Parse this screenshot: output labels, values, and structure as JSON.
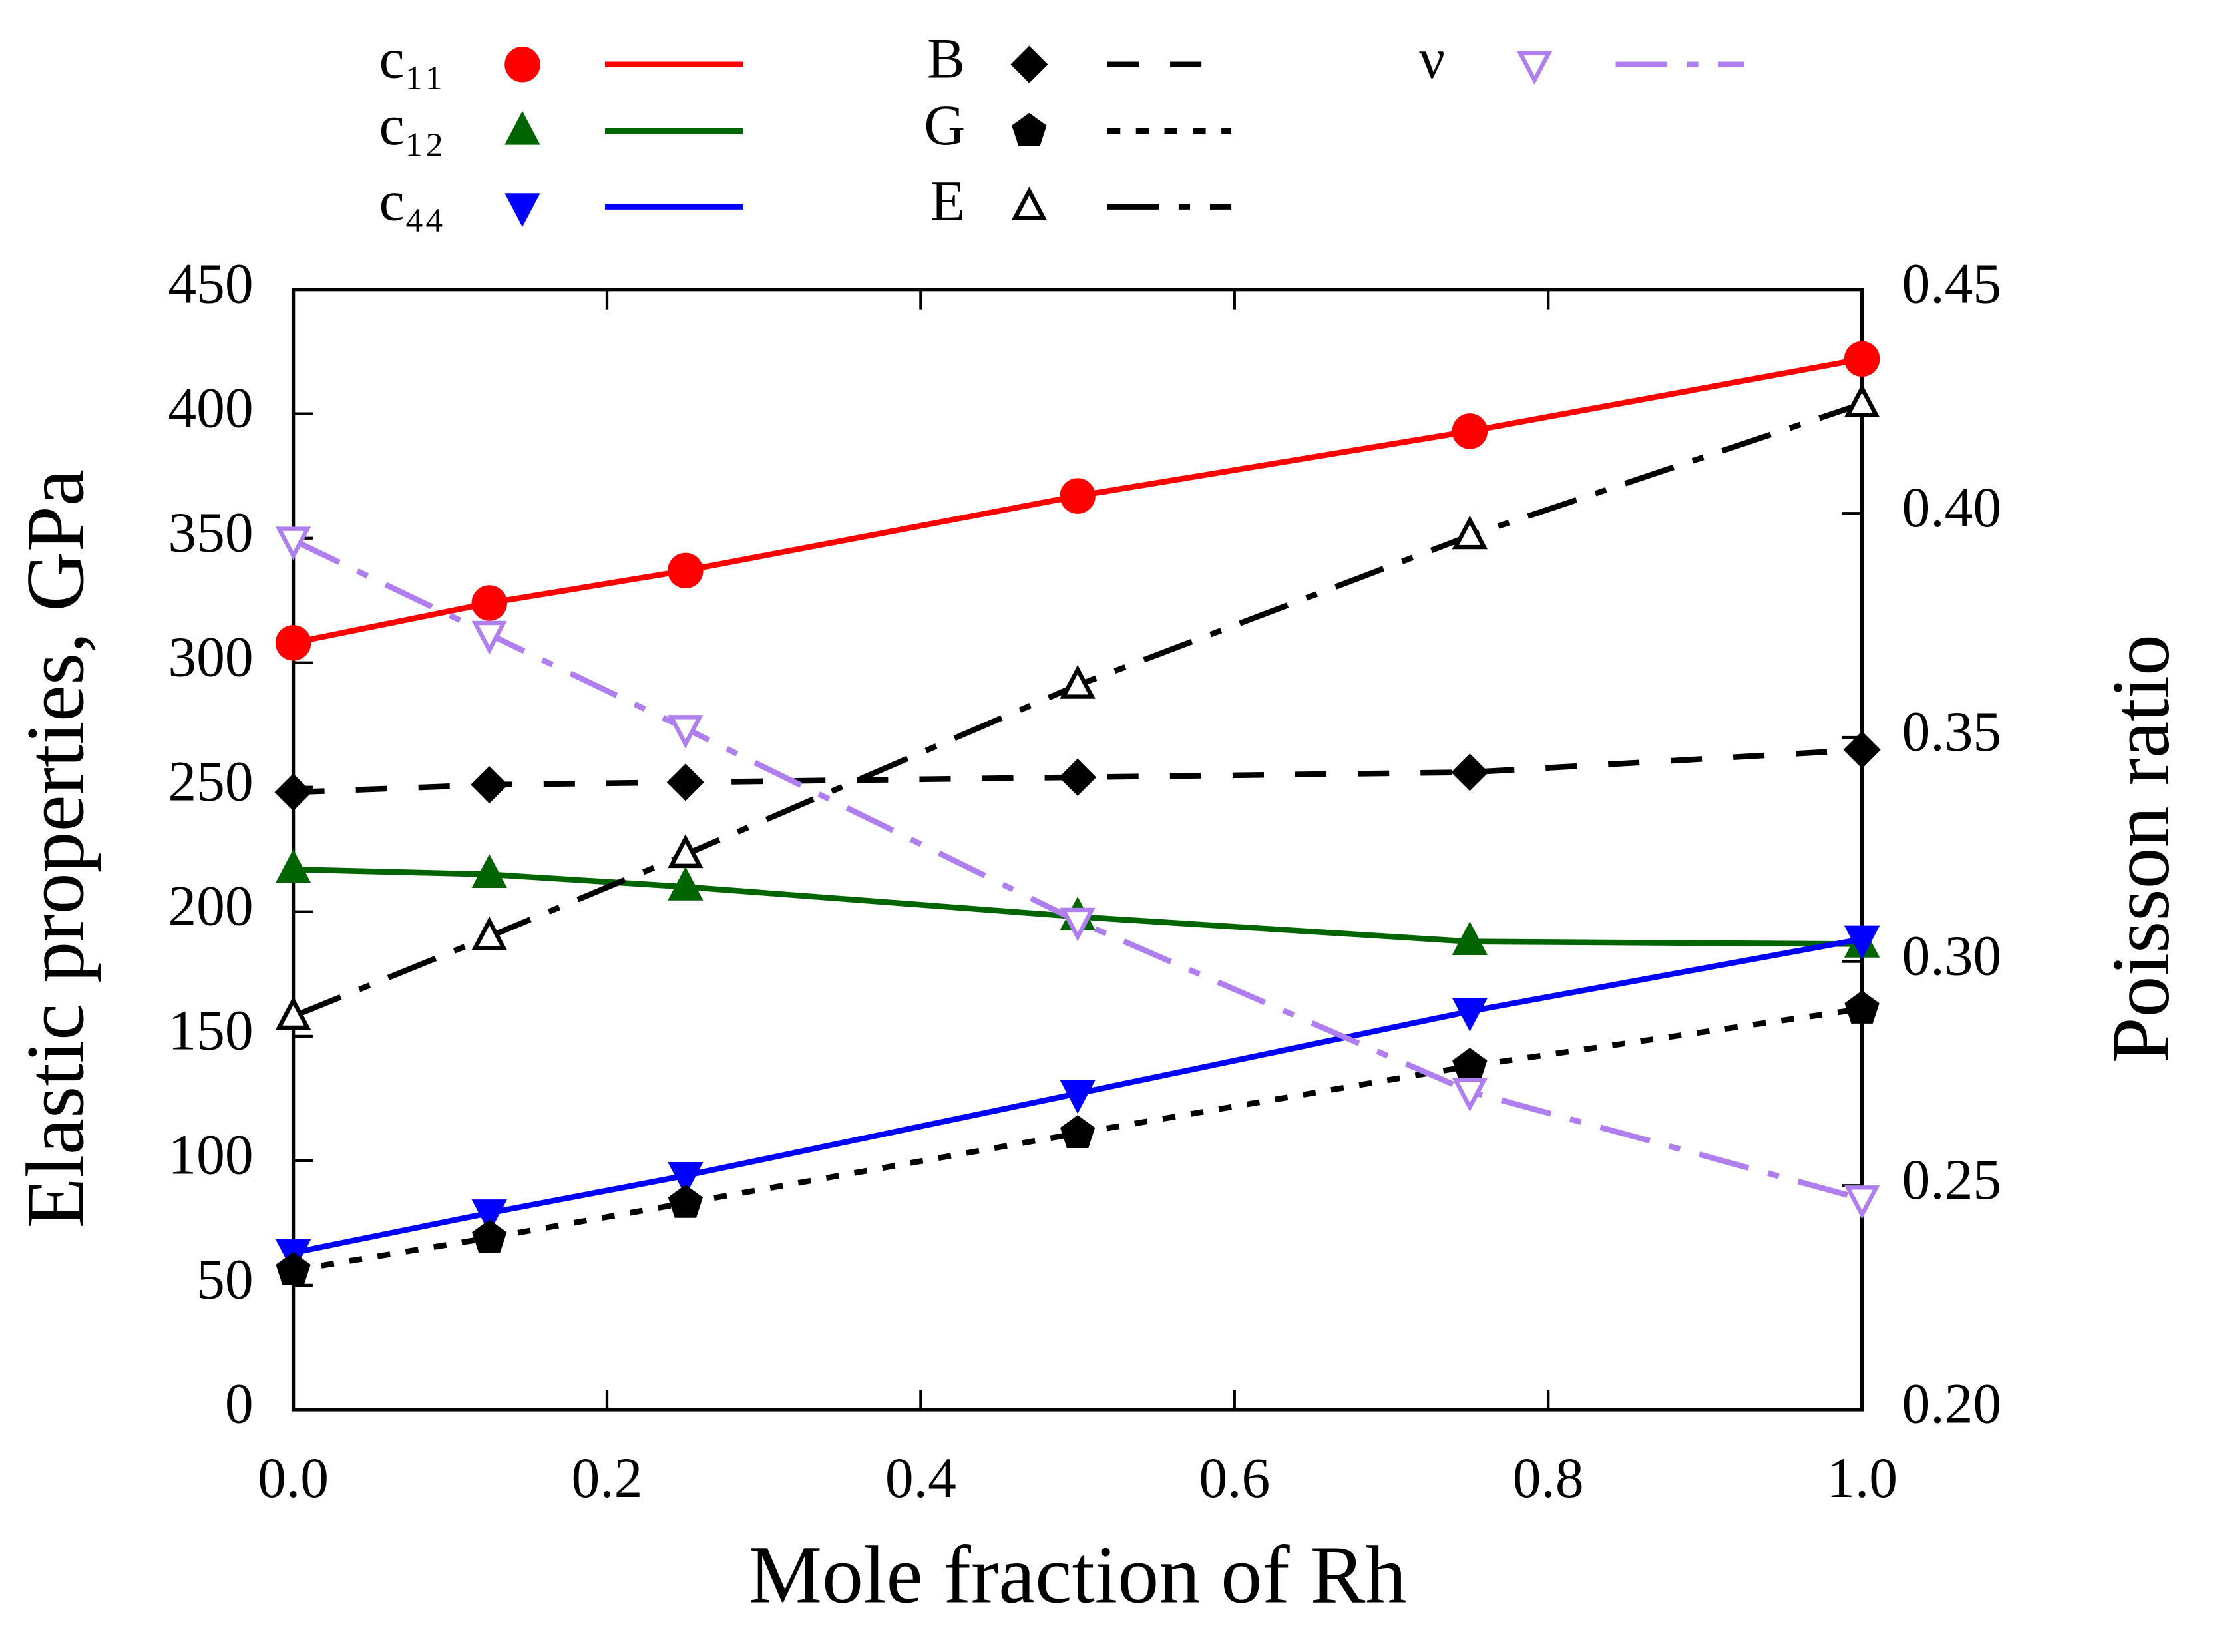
{
  "chart_data": {
    "type": "line",
    "xlabel": "Mole fraction of Rh",
    "ylabel": "Elastic properties, GPa",
    "y2label": "Poisson ratio",
    "x": [
      0,
      0.125,
      0.25,
      0.5,
      0.75,
      1.0
    ],
    "xlim": [
      0,
      1.0
    ],
    "xticks": [
      {
        "value": 0,
        "label": "0.0"
      },
      0.2,
      0.4,
      0.6,
      0.8,
      {
        "value": 1.0,
        "label": "1.0"
      }
    ],
    "ylim": [
      0,
      450
    ],
    "yticks": [
      0,
      50,
      100,
      150,
      200,
      250,
      300,
      350,
      400,
      450
    ],
    "y2lim": [
      0.2,
      0.45
    ],
    "y2ticks": [
      {
        "value": 0.2,
        "label": "0.20"
      },
      0.25,
      {
        "value": 0.3,
        "label": "0.30"
      },
      0.35,
      {
        "value": 0.4,
        "label": "0.40"
      },
      0.45
    ],
    "series": [
      {
        "name": "c₁₁",
        "color": "#ff0000",
        "values": [
          308,
          324,
          337,
          367,
          393,
          422
        ]
      },
      {
        "name": "c₁₂",
        "color": "#006400",
        "values": [
          217,
          215,
          210,
          198,
          188,
          187
        ]
      },
      {
        "name": "c₄₄",
        "color": "#0000ff",
        "values": [
          63,
          79,
          94,
          127,
          160,
          189
        ]
      },
      {
        "name": "B",
        "color": "#000000",
        "values": [
          248,
          251,
          252,
          254,
          256,
          265
        ]
      },
      {
        "name": "G",
        "color": "#000000",
        "values": [
          56,
          69,
          83,
          111,
          138,
          161
        ]
      },
      {
        "name": "E",
        "color": "#000000",
        "values": [
          158,
          190,
          223,
          291,
          351,
          404
        ]
      },
      {
        "name": "ν",
        "color": "#b07fef",
        "values": [
          0.394,
          0.373,
          0.352,
          0.309,
          0.271,
          0.247
        ],
        "axis": "y2"
      }
    ]
  }
}
